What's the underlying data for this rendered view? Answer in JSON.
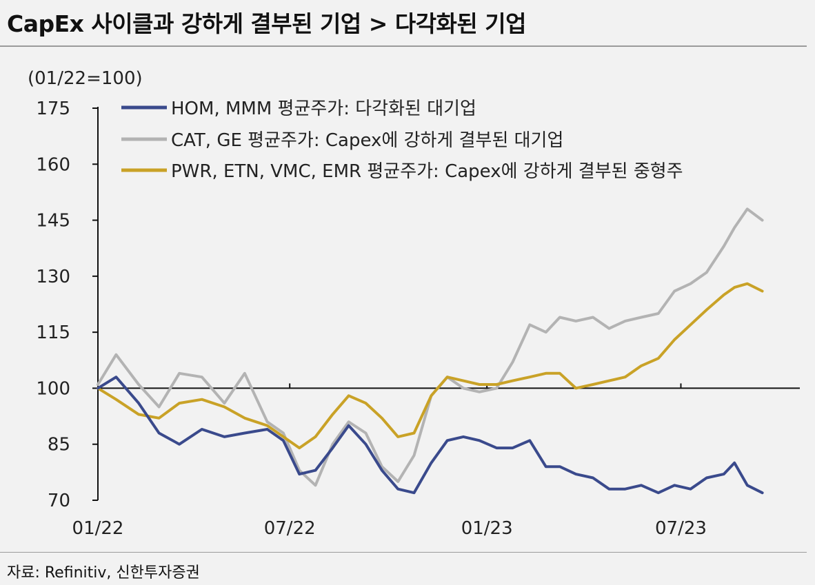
{
  "title": "CapEx 사이클과 강하게 결부된 기업 > 다각화된 기업",
  "source": "자료: Refinitiv, 신한투자증권",
  "colors": {
    "background": "#f2f2f2",
    "hom_mmm": "#3a4a8c",
    "cat_ge": "#b3b3b3",
    "pwr_etn_vmc_emr": "#c9a227",
    "axis": "#111111"
  },
  "chart_data": {
    "type": "line",
    "ylabel": "(01/22=100)",
    "ylim": [
      70,
      175
    ],
    "yticks": [
      "175",
      "160",
      "145",
      "130",
      "115",
      "100",
      "85",
      "70"
    ],
    "xticks": [
      "01/22",
      "07/22",
      "01/23",
      "07/23"
    ],
    "x_range": [
      "2022-01",
      "2023-10"
    ],
    "baseline": 100,
    "legend_position": "top-left",
    "series": [
      {
        "name": "HOM, MMM 평균주가: 다각화된 대기업",
        "color": "#3a4a8c",
        "points": [
          [
            "2022-01-03",
            100
          ],
          [
            "2022-01-20",
            103
          ],
          [
            "2022-02-10",
            96
          ],
          [
            "2022-03-01",
            88
          ],
          [
            "2022-03-20",
            85
          ],
          [
            "2022-04-10",
            89
          ],
          [
            "2022-05-01",
            87
          ],
          [
            "2022-05-20",
            88
          ],
          [
            "2022-06-10",
            89
          ],
          [
            "2022-06-25",
            86
          ],
          [
            "2022-07-10",
            77
          ],
          [
            "2022-07-25",
            78
          ],
          [
            "2022-08-10",
            84
          ],
          [
            "2022-08-25",
            90
          ],
          [
            "2022-09-10",
            85
          ],
          [
            "2022-09-25",
            78
          ],
          [
            "2022-10-10",
            73
          ],
          [
            "2022-10-25",
            72
          ],
          [
            "2022-11-10",
            80
          ],
          [
            "2022-11-25",
            86
          ],
          [
            "2022-12-10",
            87
          ],
          [
            "2022-12-25",
            86
          ],
          [
            "2023-01-10",
            84
          ],
          [
            "2023-01-25",
            84
          ],
          [
            "2023-02-10",
            86
          ],
          [
            "2023-02-25",
            79
          ],
          [
            "2023-03-10",
            79
          ],
          [
            "2023-03-25",
            77
          ],
          [
            "2023-04-10",
            76
          ],
          [
            "2023-04-25",
            73
          ],
          [
            "2023-05-10",
            73
          ],
          [
            "2023-05-25",
            74
          ],
          [
            "2023-06-10",
            72
          ],
          [
            "2023-06-25",
            74
          ],
          [
            "2023-07-10",
            73
          ],
          [
            "2023-07-25",
            76
          ],
          [
            "2023-08-10",
            77
          ],
          [
            "2023-08-20",
            80
          ],
          [
            "2023-09-01",
            74
          ],
          [
            "2023-09-15",
            72
          ]
        ]
      },
      {
        "name": "CAT, GE 평균주가: Capex에 강하게 결부된 대기업",
        "color": "#b3b3b3",
        "points": [
          [
            "2022-01-03",
            101
          ],
          [
            "2022-01-20",
            109
          ],
          [
            "2022-02-10",
            101
          ],
          [
            "2022-03-01",
            95
          ],
          [
            "2022-03-20",
            104
          ],
          [
            "2022-04-10",
            103
          ],
          [
            "2022-05-01",
            96
          ],
          [
            "2022-05-20",
            104
          ],
          [
            "2022-06-10",
            91
          ],
          [
            "2022-06-25",
            88
          ],
          [
            "2022-07-10",
            78
          ],
          [
            "2022-07-25",
            74
          ],
          [
            "2022-08-10",
            85
          ],
          [
            "2022-08-25",
            91
          ],
          [
            "2022-09-10",
            88
          ],
          [
            "2022-09-25",
            79
          ],
          [
            "2022-10-10",
            75
          ],
          [
            "2022-10-25",
            82
          ],
          [
            "2022-11-10",
            98
          ],
          [
            "2022-11-25",
            103
          ],
          [
            "2022-12-10",
            100
          ],
          [
            "2022-12-25",
            99
          ],
          [
            "2023-01-10",
            100
          ],
          [
            "2023-01-25",
            107
          ],
          [
            "2023-02-10",
            117
          ],
          [
            "2023-02-25",
            115
          ],
          [
            "2023-03-10",
            119
          ],
          [
            "2023-03-25",
            118
          ],
          [
            "2023-04-10",
            119
          ],
          [
            "2023-04-25",
            116
          ],
          [
            "2023-05-10",
            118
          ],
          [
            "2023-05-25",
            119
          ],
          [
            "2023-06-10",
            120
          ],
          [
            "2023-06-25",
            126
          ],
          [
            "2023-07-10",
            128
          ],
          [
            "2023-07-25",
            131
          ],
          [
            "2023-08-10",
            138
          ],
          [
            "2023-08-20",
            143
          ],
          [
            "2023-09-01",
            148
          ],
          [
            "2023-09-15",
            145
          ]
        ]
      },
      {
        "name": "PWR, ETN, VMC, EMR 평균주가: Capex에 강하게 결부된 중형주",
        "color": "#c9a227",
        "points": [
          [
            "2022-01-03",
            100
          ],
          [
            "2022-01-20",
            97
          ],
          [
            "2022-02-10",
            93
          ],
          [
            "2022-03-01",
            92
          ],
          [
            "2022-03-20",
            96
          ],
          [
            "2022-04-10",
            97
          ],
          [
            "2022-05-01",
            95
          ],
          [
            "2022-05-20",
            92
          ],
          [
            "2022-06-10",
            90
          ],
          [
            "2022-06-25",
            87
          ],
          [
            "2022-07-10",
            84
          ],
          [
            "2022-07-25",
            87
          ],
          [
            "2022-08-10",
            93
          ],
          [
            "2022-08-25",
            98
          ],
          [
            "2022-09-10",
            96
          ],
          [
            "2022-09-25",
            92
          ],
          [
            "2022-10-10",
            87
          ],
          [
            "2022-10-25",
            88
          ],
          [
            "2022-11-10",
            98
          ],
          [
            "2022-11-25",
            103
          ],
          [
            "2022-12-10",
            102
          ],
          [
            "2022-12-25",
            101
          ],
          [
            "2023-01-10",
            101
          ],
          [
            "2023-01-25",
            102
          ],
          [
            "2023-02-10",
            103
          ],
          [
            "2023-02-25",
            104
          ],
          [
            "2023-03-10",
            104
          ],
          [
            "2023-03-25",
            100
          ],
          [
            "2023-04-10",
            101
          ],
          [
            "2023-04-25",
            102
          ],
          [
            "2023-05-10",
            103
          ],
          [
            "2023-05-25",
            106
          ],
          [
            "2023-06-10",
            108
          ],
          [
            "2023-06-25",
            113
          ],
          [
            "2023-07-10",
            117
          ],
          [
            "2023-07-25",
            121
          ],
          [
            "2023-08-10",
            125
          ],
          [
            "2023-08-20",
            127
          ],
          [
            "2023-09-01",
            128
          ],
          [
            "2023-09-15",
            126
          ]
        ]
      }
    ]
  }
}
